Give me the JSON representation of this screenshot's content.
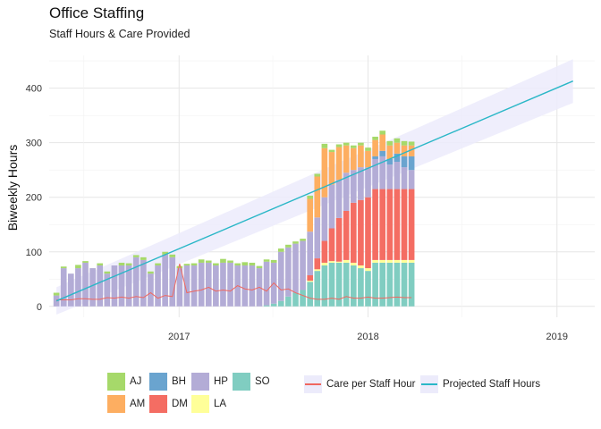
{
  "title": "Office Staffing",
  "subtitle": "Staff Hours & Care Provided",
  "chart_data": {
    "type": "bar",
    "ylabel": "Biweekly Hours",
    "xlabel": "",
    "x_ticks": [
      "2017",
      "2018",
      "2019"
    ],
    "y_ticks": [
      "0",
      "100",
      "200",
      "300",
      "400"
    ],
    "ylim": [
      -20,
      460
    ],
    "xlim": [
      "2016-04-25",
      "2019-03-15"
    ],
    "grid": true,
    "legend_position": "bottom",
    "stack_order": [
      "SO",
      "LA",
      "DM",
      "HP",
      "BH",
      "AM",
      "AJ"
    ],
    "colors": {
      "AJ": "#a6d96a",
      "AM": "#fdae61",
      "BH": "#6aa4cf",
      "DM": "#f46d63",
      "HP": "#b3acd6",
      "LA": "#ffff99",
      "SO": "#80cdc1",
      "care": "#f0675f",
      "projection": "#2ab7c7",
      "band": "#ecebfb"
    },
    "legend": {
      "staff": [
        {
          "key": "AJ",
          "label": "AJ"
        },
        {
          "key": "AM",
          "label": "AM"
        },
        {
          "key": "BH",
          "label": "BH"
        },
        {
          "key": "DM",
          "label": "DM"
        },
        {
          "key": "HP",
          "label": "HP"
        },
        {
          "key": "LA",
          "label": "LA"
        },
        {
          "key": "SO",
          "label": "SO"
        }
      ],
      "care_label": "Care per Staff Hour",
      "projection_label": "Projected Staff Hours"
    },
    "dates": [
      "2016-05-09",
      "2016-05-23",
      "2016-06-06",
      "2016-06-20",
      "2016-07-04",
      "2016-07-18",
      "2016-08-01",
      "2016-08-15",
      "2016-08-29",
      "2016-09-12",
      "2016-09-26",
      "2016-10-10",
      "2016-10-24",
      "2016-11-07",
      "2016-11-21",
      "2016-12-05",
      "2016-12-19",
      "2017-01-02",
      "2017-01-16",
      "2017-01-30",
      "2017-02-13",
      "2017-02-27",
      "2017-03-13",
      "2017-03-27",
      "2017-04-10",
      "2017-04-24",
      "2017-05-08",
      "2017-05-22",
      "2017-06-05",
      "2017-06-19",
      "2017-07-03",
      "2017-07-17",
      "2017-07-31",
      "2017-08-14",
      "2017-08-28",
      "2017-09-11",
      "2017-09-25",
      "2017-10-09",
      "2017-10-23",
      "2017-11-06",
      "2017-11-20",
      "2017-12-04",
      "2017-12-18",
      "2018-01-01",
      "2018-01-15",
      "2018-01-29",
      "2018-02-12",
      "2018-02-26",
      "2018-03-12",
      "2018-03-26"
    ],
    "series": [
      {
        "key": "SO",
        "values": [
          0,
          0,
          0,
          0,
          0,
          0,
          0,
          0,
          0,
          0,
          0,
          0,
          0,
          0,
          0,
          0,
          0,
          0,
          0,
          0,
          0,
          0,
          0,
          0,
          0,
          0,
          0,
          0,
          0,
          2,
          5,
          10,
          18,
          25,
          30,
          45,
          65,
          75,
          80,
          80,
          80,
          75,
          70,
          65,
          80,
          80,
          80,
          80,
          80,
          80
        ]
      },
      {
        "key": "LA",
        "values": [
          0,
          0,
          0,
          0,
          0,
          0,
          0,
          0,
          0,
          0,
          0,
          0,
          0,
          0,
          0,
          0,
          0,
          0,
          0,
          0,
          0,
          0,
          0,
          0,
          0,
          0,
          0,
          0,
          0,
          0,
          0,
          0,
          0,
          0,
          0,
          2,
          3,
          5,
          3,
          2,
          5,
          5,
          5,
          5,
          5,
          5,
          5,
          5,
          5,
          5
        ]
      },
      {
        "key": "DM",
        "values": [
          0,
          0,
          0,
          0,
          0,
          0,
          0,
          0,
          0,
          0,
          0,
          0,
          0,
          0,
          0,
          0,
          0,
          0,
          0,
          0,
          0,
          0,
          0,
          0,
          0,
          0,
          0,
          0,
          0,
          0,
          0,
          0,
          0,
          0,
          0,
          10,
          20,
          40,
          60,
          80,
          90,
          110,
          120,
          130,
          130,
          130,
          130,
          130,
          130,
          130
        ]
      },
      {
        "key": "HP",
        "values": [
          20,
          70,
          60,
          70,
          80,
          70,
          75,
          60,
          75,
          75,
          75,
          90,
          85,
          60,
          75,
          95,
          90,
          70,
          75,
          75,
          80,
          80,
          75,
          80,
          80,
          75,
          75,
          75,
          70,
          80,
          75,
          90,
          90,
          90,
          90,
          80,
          75,
          80,
          80,
          70,
          70,
          60,
          60,
          55,
          55,
          60,
          45,
          50,
          40,
          35
        ]
      },
      {
        "key": "BH",
        "values": [
          0,
          0,
          0,
          0,
          0,
          0,
          0,
          0,
          0,
          0,
          0,
          0,
          0,
          0,
          0,
          0,
          0,
          0,
          0,
          0,
          0,
          0,
          0,
          0,
          0,
          0,
          0,
          0,
          0,
          0,
          0,
          0,
          0,
          0,
          0,
          0,
          0,
          0,
          0,
          0,
          0,
          0,
          0,
          0,
          5,
          10,
          10,
          15,
          20,
          25
        ]
      },
      {
        "key": "AM",
        "values": [
          0,
          0,
          0,
          0,
          0,
          0,
          0,
          0,
          0,
          0,
          0,
          0,
          0,
          0,
          0,
          0,
          0,
          0,
          0,
          0,
          0,
          0,
          0,
          0,
          0,
          0,
          0,
          0,
          0,
          0,
          0,
          0,
          0,
          0,
          0,
          60,
          75,
          90,
          60,
          60,
          50,
          40,
          40,
          30,
          30,
          30,
          25,
          20,
          20,
          20
        ]
      },
      {
        "key": "AJ",
        "values": [
          5,
          3,
          0,
          6,
          3,
          0,
          4,
          4,
          0,
          5,
          4,
          4,
          5,
          4,
          4,
          5,
          5,
          4,
          3,
          4,
          6,
          4,
          4,
          7,
          4,
          4,
          6,
          5,
          4,
          4,
          5,
          6,
          5,
          4,
          4,
          6,
          5,
          8,
          4,
          5,
          5,
          5,
          5,
          6,
          6,
          7,
          8,
          8,
          8,
          7
        ]
      }
    ],
    "care_per_staff_hour": [
      12,
      12,
      12,
      14,
      14,
      13,
      13,
      16,
      15,
      17,
      15,
      18,
      16,
      25,
      15,
      20,
      18,
      78,
      25,
      28,
      30,
      35,
      28,
      30,
      28,
      38,
      32,
      30,
      35,
      28,
      43,
      30,
      32,
      25,
      20,
      15,
      13,
      13,
      15,
      13,
      18,
      15,
      15,
      17,
      15,
      15,
      16,
      17,
      16,
      16
    ],
    "projection": {
      "start": {
        "x": "2016-05-09",
        "y": 10
      },
      "end": {
        "x": "2019-02-01",
        "y": 413
      },
      "band_start": 25,
      "band_end": 40
    }
  }
}
